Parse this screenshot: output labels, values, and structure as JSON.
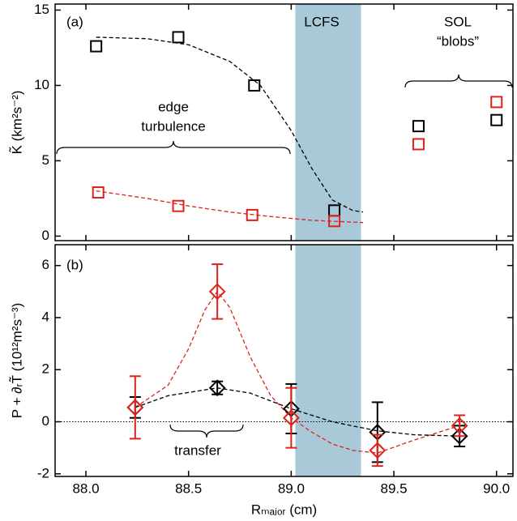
{
  "chart_data": [
    {
      "type": "scatter",
      "ylabel": "K̃  (km²s⁻²)",
      "annotations": [
        "(a)",
        "LCFS",
        "SOL",
        "“blobs”",
        "edge",
        "turbulence"
      ],
      "xlim": [
        87.85,
        90.08
      ],
      "ylim": [
        -0.3,
        15.4
      ],
      "xticks": [
        88,
        88.5,
        89,
        89.5,
        90
      ],
      "yticks": [
        0,
        5,
        10,
        15
      ],
      "shaded_region": [
        89.02,
        89.34
      ],
      "shaded_color": "#a9c8d8",
      "series": [
        {
          "marker": "square",
          "color": "#000000",
          "x": [
            88.05,
            88.45,
            88.82,
            89.21,
            89.62,
            90.0
          ],
          "values": [
            12.6,
            13.2,
            10.0,
            1.7,
            7.3,
            7.7
          ]
        },
        {
          "marker": "square",
          "color": "#e0201b",
          "x": [
            88.06,
            88.45,
            88.81,
            89.21,
            89.62,
            90.0
          ],
          "values": [
            2.9,
            2.0,
            1.4,
            1.0,
            6.1,
            8.9
          ]
        },
        {
          "marker": "dashed",
          "color": "#000000",
          "x": [
            88.05,
            88.3,
            88.5,
            88.7,
            88.85,
            89.0,
            89.1,
            89.2,
            89.3,
            89.35
          ],
          "values": [
            13.2,
            13.1,
            12.7,
            11.6,
            10.0,
            7.0,
            4.5,
            2.4,
            1.7,
            1.6
          ]
        },
        {
          "marker": "dashed",
          "color": "#e0201b",
          "x": [
            88.05,
            88.3,
            88.5,
            88.7,
            88.9,
            89.1,
            89.35
          ],
          "values": [
            3.0,
            2.5,
            2.0,
            1.6,
            1.3,
            1.05,
            0.9
          ]
        }
      ]
    },
    {
      "type": "scatter",
      "xlabel": "Rₘₐⱼₒᵣ (cm)",
      "ylabel": "P + ∂ᵣT̃  (10¹²m²s⁻³)",
      "annotations": [
        "(b)",
        "transfer"
      ],
      "xlim": [
        87.85,
        90.08
      ],
      "ylim": [
        -2.1,
        6.8
      ],
      "xticks": [
        {
          "value": 88,
          "label": "88.0"
        },
        {
          "value": 88.5,
          "label": "88.5"
        },
        {
          "value": 89,
          "label": "89.0"
        },
        {
          "value": 89.5,
          "label": "89.5"
        },
        {
          "value": 90,
          "label": "90.0"
        }
      ],
      "yticks": [
        -2,
        0,
        2,
        4,
        6
      ],
      "shaded_region": [
        89.02,
        89.34
      ],
      "shaded_color": "#a9c8d8",
      "reference_line": 0,
      "series": [
        {
          "marker": "dashed",
          "color": "#e0201b",
          "x": [
            88.24,
            88.4,
            88.5,
            88.58,
            88.64,
            88.7,
            88.8,
            88.9,
            89.0,
            89.1,
            89.2,
            89.3,
            89.42,
            89.6,
            89.82
          ],
          "values": [
            0.55,
            1.4,
            2.8,
            4.3,
            5.0,
            4.4,
            2.5,
            1.0,
            0.15,
            -0.4,
            -0.85,
            -1.1,
            -1.2,
            -0.7,
            -0.15
          ]
        },
        {
          "marker": "dashed",
          "color": "#000000",
          "x": [
            88.24,
            88.4,
            88.64,
            88.8,
            89.0,
            89.2,
            89.42,
            89.6,
            89.82
          ],
          "values": [
            0.55,
            1.0,
            1.3,
            1.1,
            0.5,
            0.0,
            -0.35,
            -0.5,
            -0.55
          ]
        },
        {
          "marker": "diamond",
          "color": "#000000",
          "x": [
            88.24,
            88.64,
            89.0,
            89.42,
            89.82
          ],
          "values": [
            0.55,
            1.3,
            0.5,
            -0.4,
            -0.55
          ],
          "errors": [
            0.4,
            0.25,
            0.95,
            1.15,
            0.4
          ]
        },
        {
          "marker": "diamond",
          "color": "#e0201b",
          "x": [
            88.24,
            88.64,
            89.0,
            89.42,
            89.82
          ],
          "values": [
            0.55,
            5.0,
            0.15,
            -1.1,
            -0.15
          ],
          "errors": [
            1.2,
            1.05,
            1.15,
            0.6,
            0.4
          ]
        }
      ]
    }
  ]
}
